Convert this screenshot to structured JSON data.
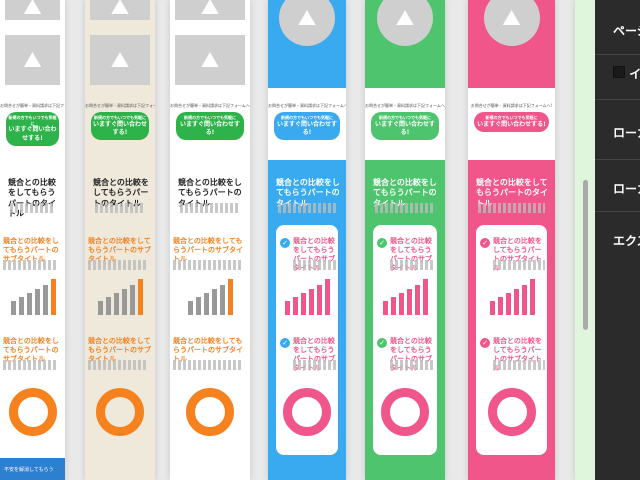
{
  "template_text": {
    "lead": "お問合せが簡単・資料請求は下記フォームへ!",
    "cta_small": "新規の方でもいつでも気軽に",
    "cta_main": "いますぐ問い合わせする!",
    "section_title": "競合との比較をしてもらうパートのタイトル",
    "section_subtitle": "競合との比較をしてもらうパートのサブタイトル",
    "footer_text": "不安を解消してもらう"
  },
  "columns": [
    {
      "bg": "#ffffff",
      "accent": "#f5821f",
      "cta": "#2db34a",
      "footer": "#2d7fd0",
      "bars": "#999999",
      "style": "plain"
    },
    {
      "bg": "#efe9dc",
      "accent": "#f5821f",
      "cta": "#2db34a",
      "footer": "#e6e0d2",
      "bars": "#999999",
      "style": "plain"
    },
    {
      "bg": "#ffffff",
      "accent": "#f5821f",
      "cta": "#2db34a",
      "footer": "#ffffff",
      "bars": "#999999",
      "style": "plain"
    },
    {
      "bg": "#3aaaf0",
      "accent": "#f0568a",
      "cta": "#3aaaf0",
      "footer": "#3aaaf0",
      "bars": "#f0568a",
      "style": "card"
    },
    {
      "bg": "#4fc46e",
      "accent": "#f0568a",
      "cta": "#4fc46e",
      "footer": "#4fc46e",
      "bars": "#f0568a",
      "style": "card"
    },
    {
      "bg": "#f0568a",
      "accent": "#f0568a",
      "cta": "#f0568a",
      "footer": "#f0568a",
      "bars": "#f0568a",
      "style": "card"
    }
  ],
  "bar_levels": [
    0.35,
    0.45,
    0.55,
    0.65,
    0.75,
    0.9
  ],
  "panel": {
    "items": [
      {
        "label": "ページ"
      },
      {
        "label": "イ"
      },
      {
        "label": "ローカ"
      },
      {
        "label": "ローカ"
      },
      {
        "label": "エクス"
      }
    ]
  }
}
